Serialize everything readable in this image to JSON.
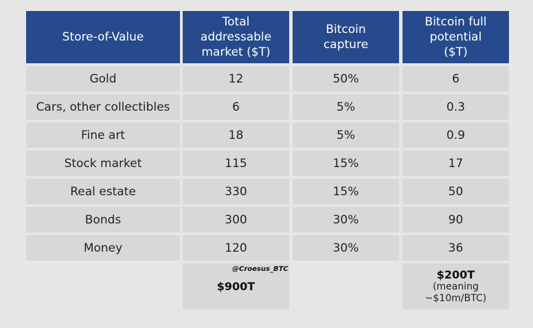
{
  "table": {
    "header": [
      "Store-of-Value",
      "Total addressable market ($T)",
      "Bitcoin capture",
      "Bitcoin full potential ($T)"
    ],
    "rows": [
      [
        "Gold",
        "12",
        "50%",
        "6"
      ],
      [
        "Cars, other collectibles",
        "6",
        "5%",
        "0.3"
      ],
      [
        "Fine art",
        "18",
        "5%",
        "0.9"
      ],
      [
        "Stock market",
        "115",
        "15%",
        "17"
      ],
      [
        "Real estate",
        "330",
        "15%",
        "50"
      ],
      [
        "Bonds",
        "300",
        "30%",
        "90"
      ],
      [
        "Money",
        "120",
        "30%",
        "36"
      ]
    ],
    "footer": {
      "watermark": "@Croesus_BTC",
      "total_market": "$900T",
      "total_potential": "$200T",
      "note": "(meaning ~$10m/BTC)"
    }
  }
}
